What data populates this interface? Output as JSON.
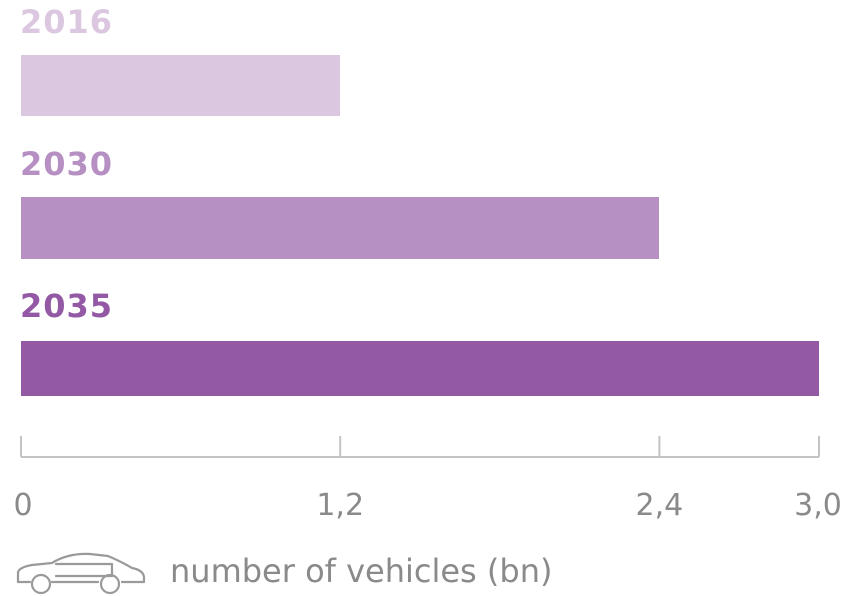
{
  "chart_data": {
    "type": "bar",
    "orientation": "horizontal",
    "categories": [
      "2016",
      "2030",
      "2035"
    ],
    "values": [
      1.2,
      2.4,
      3.0
    ],
    "colors": [
      "#dcc7e0",
      "#b68fc3",
      "#9359a4"
    ],
    "xlim": [
      0,
      3.0
    ],
    "xticks": [
      0,
      1.2,
      2.4,
      3.0
    ],
    "xtick_labels": [
      "0",
      "1,2",
      "2,4",
      "3,0"
    ],
    "xlabel": "number of vehicles (bn)",
    "xlabel_icon": "car-icon",
    "grid": false,
    "legend": "none",
    "axis_color": "#c4c4c4",
    "tick_label_color": "#8a8a8a"
  }
}
